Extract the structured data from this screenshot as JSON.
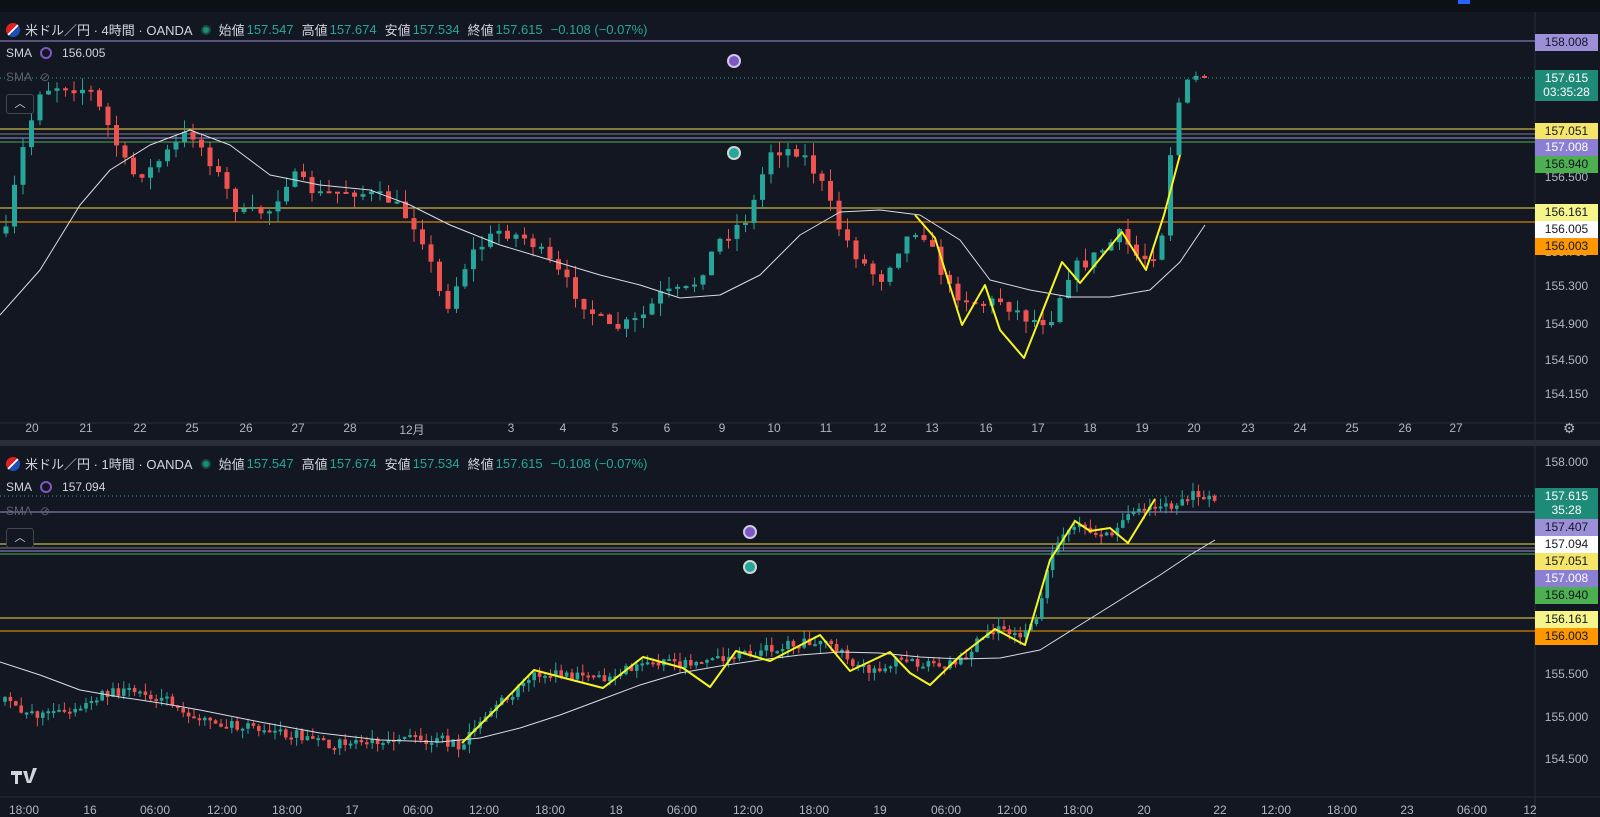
{
  "top_chart": {
    "legend": {
      "title": "米ドル／円 · 4時間 · OANDA",
      "open_label": "始値",
      "open": "157.547",
      "high_label": "高値",
      "high": "157.674",
      "low_label": "安値",
      "low": "157.534",
      "close_label": "終値",
      "close": "157.615",
      "change": "−0.108 (−0.07%)"
    },
    "sma1": {
      "label": "SMA",
      "value": "156.005"
    },
    "sma2": {
      "label": "SMA"
    },
    "price_axis": [
      "156.500",
      "155.700",
      "155.300",
      "154.900",
      "154.500",
      "154.150"
    ],
    "price_tags": {
      "line_top": "158.008",
      "current": "157.615",
      "countdown": "03:35:28",
      "yellow1": "157.051",
      "purple": "157.008",
      "green": "156.940",
      "yellow2": "156.161",
      "sma": "156.005",
      "orange": "156.003"
    },
    "date_axis": [
      "20",
      "21",
      "22",
      "25",
      "26",
      "27",
      "28",
      "12月",
      "3",
      "4",
      "5",
      "6",
      "9",
      "10",
      "11",
      "12",
      "13",
      "16",
      "17",
      "18",
      "19",
      "20",
      "23",
      "24",
      "25",
      "26",
      "27"
    ]
  },
  "bottom_chart": {
    "legend": {
      "title": "米ドル／円 · 1時間 · OANDA",
      "open_label": "始値",
      "open": "157.547",
      "high_label": "高値",
      "high": "157.674",
      "low_label": "安値",
      "low": "157.534",
      "close_label": "終値",
      "close": "157.615",
      "change": "−0.108 (−0.07%)"
    },
    "sma1": {
      "label": "SMA",
      "value": "157.094"
    },
    "sma2": {
      "label": "SMA"
    },
    "price_axis": [
      "158.000",
      "155.500",
      "155.000",
      "154.500"
    ],
    "price_tags": {
      "current": "157.615",
      "countdown": "35:28",
      "purple_line": "157.407",
      "sma": "157.094",
      "yellow1": "157.051",
      "purple": "157.008",
      "green": "156.940",
      "yellow2": "156.161",
      "orange": "156.003"
    },
    "time_axis": [
      "18:00",
      "16",
      "06:00",
      "12:00",
      "18:00",
      "17",
      "06:00",
      "12:00",
      "18:00",
      "18",
      "06:00",
      "12:00",
      "18:00",
      "19",
      "06:00",
      "12:00",
      "18:00",
      "20",
      "22",
      "12:00",
      "18:00",
      "23",
      "06:00",
      "12"
    ]
  },
  "colors": {
    "background": "#131722",
    "up": "#26a69a",
    "down": "#ef5350",
    "sma": "#e0e3eb",
    "zigzag": "#f5f520",
    "level_yellow": "#f5d949",
    "level_orange": "#ff9800",
    "level_purple": "#9c8fd8",
    "level_green": "#4caf50"
  },
  "icons": [
    "flag-icon",
    "status-dot-icon",
    "sma-icon",
    "eye-off-icon",
    "chevron-up-icon",
    "alarm-icon",
    "tradingview-logo",
    "gear-icon"
  ]
}
